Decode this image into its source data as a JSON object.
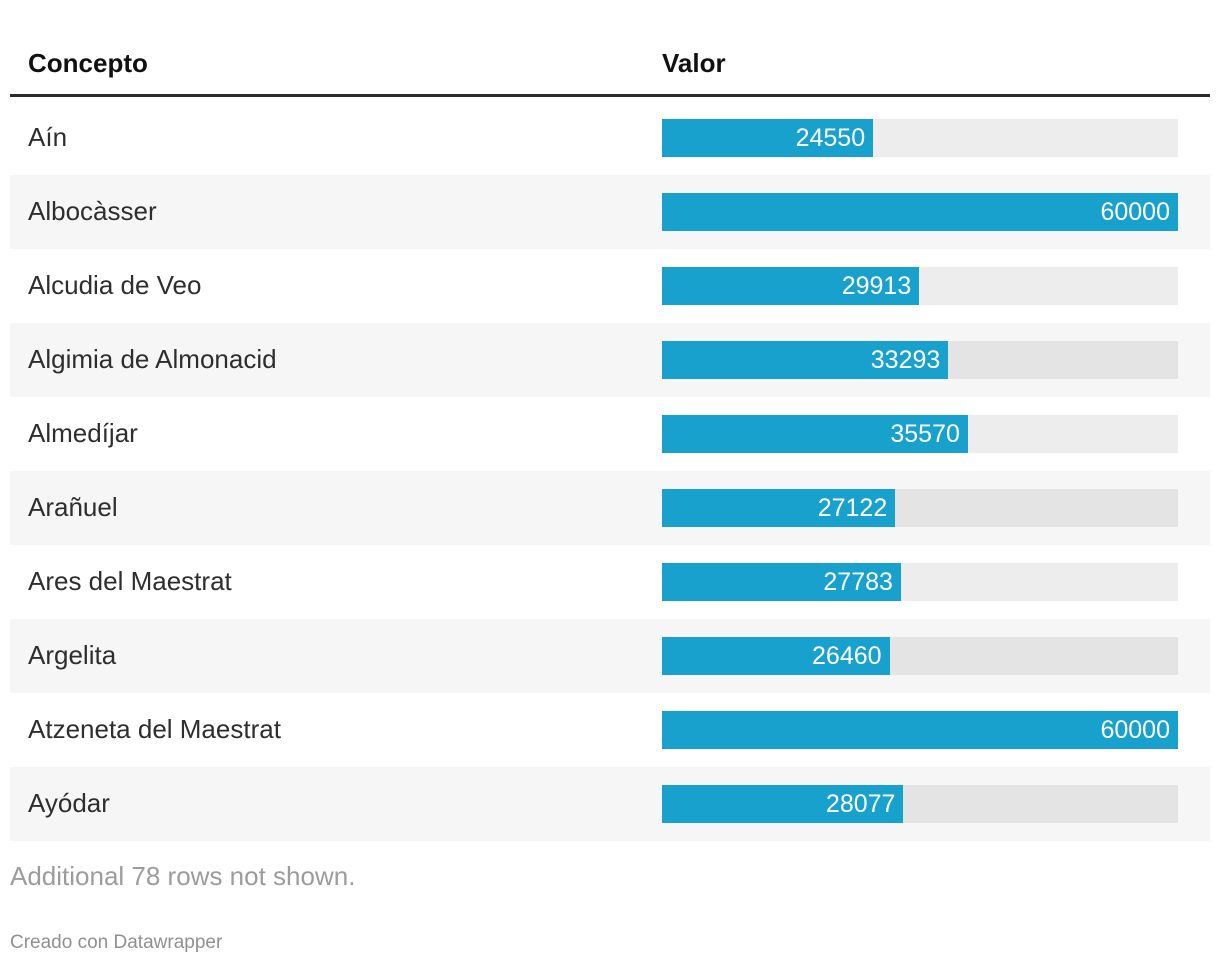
{
  "table": {
    "columns": [
      "Concepto",
      "Valor"
    ],
    "max_value": 60000,
    "rows": [
      {
        "label": "Aín",
        "value": 24550
      },
      {
        "label": "Albocàsser",
        "value": 60000
      },
      {
        "label": "Alcudia de Veo",
        "value": 29913
      },
      {
        "label": "Algimia de Almonacid",
        "value": 33293
      },
      {
        "label": "Almedíjar",
        "value": 35570
      },
      {
        "label": "Arañuel",
        "value": 27122
      },
      {
        "label": "Ares del Maestrat",
        "value": 27783
      },
      {
        "label": "Argelita",
        "value": 26460
      },
      {
        "label": "Atzeneta del Maestrat",
        "value": 60000
      },
      {
        "label": "Ayódar",
        "value": 28077
      }
    ]
  },
  "footer": {
    "note": "Additional 78 rows not shown.",
    "attribution": "Creado con Datawrapper"
  },
  "colors": {
    "bar": "#18a1cc",
    "bar_track": "#ebebeb",
    "row_alt_background": "#f6f6f6",
    "header_rule": "#2b2b2b",
    "bar_value_text": "#ffffff",
    "note_text": "#9c9c9c",
    "attribution_text": "#909090"
  },
  "chart_data": {
    "type": "bar",
    "orientation": "horizontal",
    "title": "",
    "xlabel": "Valor",
    "ylabel": "Concepto",
    "categories": [
      "Aín",
      "Albocàsser",
      "Alcudia de Veo",
      "Algimia de Almonacid",
      "Almedíjar",
      "Arañuel",
      "Ares del Maestrat",
      "Argelita",
      "Atzeneta del Maestrat",
      "Ayódar"
    ],
    "values": [
      24550,
      60000,
      29913,
      33293,
      35570,
      27122,
      27783,
      26460,
      60000,
      28077
    ],
    "xlim": [
      0,
      60000
    ],
    "grid": false,
    "legend_position": "none",
    "data_labels": "inside-end",
    "note": "Additional 78 rows not shown.",
    "attribution": "Creado con Datawrapper"
  }
}
